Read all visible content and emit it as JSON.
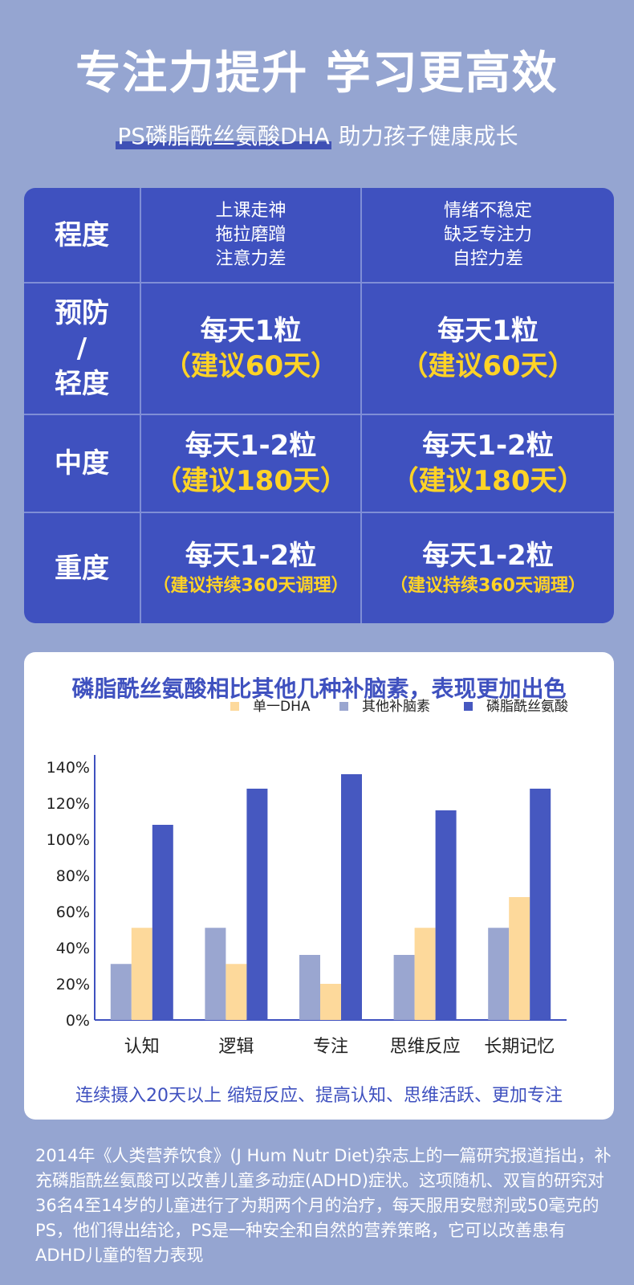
{
  "header": {
    "title": "专注力提升 学习更高效",
    "subtitle_highlight": "PS磷脂酰丝氨酸DHA",
    "subtitle_rest": " 助力孩子健康成长"
  },
  "dosage_table": {
    "header": {
      "label": "程度",
      "col1": [
        "上课走神",
        "拖拉磨蹭",
        "注意力差"
      ],
      "col2": [
        "情绪不稳定",
        "缺乏专注力",
        "自控力差"
      ]
    },
    "rows": [
      {
        "level": [
          "预防",
          "/",
          "轻度"
        ],
        "col1": {
          "dose": "每天1粒",
          "note": "（建议60天）"
        },
        "col2": {
          "dose": "每天1粒",
          "note": "（建议60天）"
        }
      },
      {
        "level": [
          "中度"
        ],
        "col1": {
          "dose": "每天1-2粒",
          "note": "（建议180天）"
        },
        "col2": {
          "dose": "每天1-2粒",
          "note": "（建议180天）"
        }
      },
      {
        "level": [
          "重度"
        ],
        "col1": {
          "dose": "每天1-2粒",
          "note": "（建议持续360天调理）"
        },
        "col2": {
          "dose": "每天1-2粒",
          "note": "（建议持续360天调理）"
        }
      }
    ]
  },
  "chart_data": {
    "type": "bar",
    "title": "磷脂酰丝氨酸相比其他几种补脑素，表现更加出色",
    "categories": [
      "认知",
      "逻辑",
      "专注",
      "思维反应",
      "长期记忆"
    ],
    "series": [
      {
        "name": "其他补脑素",
        "color": "#9aa6d0",
        "values": [
          31,
          51,
          36,
          36,
          51
        ]
      },
      {
        "name": "单一DHA",
        "color": "#fdd99b",
        "values": [
          51,
          31,
          20,
          51,
          68
        ]
      },
      {
        "name": "磷脂酰丝氨酸",
        "color": "#4658c0",
        "values": [
          108,
          128,
          136,
          116,
          128
        ]
      }
    ],
    "legend_order": [
      1,
      0,
      2
    ],
    "y_ticks": [
      "0%",
      "20%",
      "40%",
      "60%",
      "80%",
      "100%",
      "120%",
      "140%"
    ],
    "ylim": [
      0,
      140
    ],
    "grid": false,
    "legend_position": "top-right",
    "footer": "连续摄入20天以上 缩短反应、提高认知、思维活跃、更加专注"
  },
  "footnote": "2014年《人类营养饮食》(J Hum Nutr Diet)杂志上的一篇研究报道指出，补充磷脂酰丝氨酸可以改善儿童多动症(ADHD)症状。这项随机、双盲的研究对36名4至14岁的儿童进行了为期两个月的治疗，每天服用安慰剂或50毫克的PS，他们得出结论，PS是一种安全和自然的营养策略，它可以改善患有ADHD儿童的智力表现",
  "colors": {
    "background": "#95a5d1",
    "table_bg": "#3f51bf",
    "accent_yellow": "#ffd326",
    "accent_blue": "#3f51bf"
  }
}
